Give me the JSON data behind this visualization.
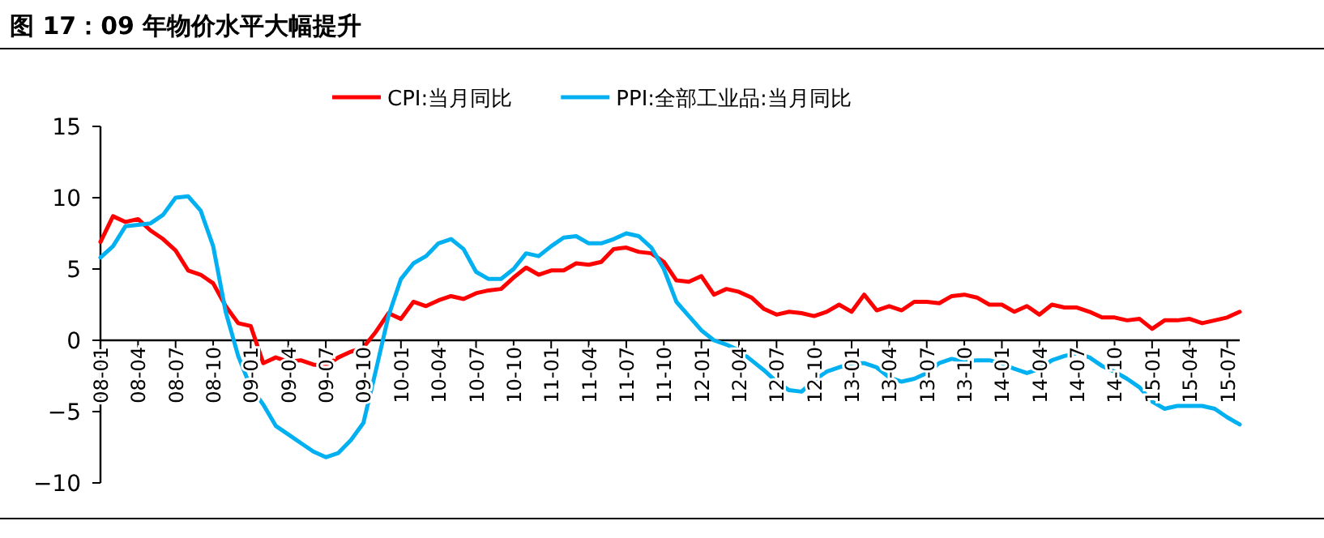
{
  "chart_data": {
    "type": "line",
    "title": "图 17：09 年物价水平大幅提升",
    "categories": [
      "08-01",
      null,
      null,
      "08-04",
      null,
      null,
      "08-07",
      null,
      null,
      "08-10",
      null,
      null,
      "09-01",
      null,
      null,
      "09-04",
      null,
      null,
      "09-07",
      null,
      null,
      "09-10",
      null,
      null,
      "10-01",
      null,
      null,
      "10-04",
      null,
      null,
      "10-07",
      null,
      null,
      "10-10",
      null,
      null,
      "11-01",
      null,
      null,
      "11-04",
      null,
      null,
      "11-07",
      null,
      null,
      "11-10",
      null,
      null,
      "12-01",
      null,
      null,
      "12-04",
      null,
      null,
      "12-07",
      null,
      null,
      "12-10",
      null,
      null,
      "13-01",
      null,
      null,
      "13-04",
      null,
      null,
      "13-07",
      null,
      null,
      "13-10",
      null,
      null,
      "14-01",
      null,
      null,
      "14-04",
      null,
      null,
      "14-07",
      null,
      null,
      "14-10",
      null,
      null,
      "15-01",
      null,
      null,
      "15-04",
      null,
      null,
      "15-07",
      null
    ],
    "series": [
      {
        "name": "CPI:当月同比",
        "color": "#ff0000",
        "values": [
          6.9,
          8.7,
          8.3,
          8.5,
          7.7,
          7.1,
          6.3,
          4.9,
          4.6,
          4.0,
          2.4,
          1.2,
          1.0,
          -1.6,
          -1.2,
          -1.5,
          -1.4,
          -1.7,
          -1.8,
          -1.2,
          -0.8,
          -0.5,
          0.6,
          1.9,
          1.5,
          2.7,
          2.4,
          2.8,
          3.1,
          2.9,
          3.3,
          3.5,
          3.6,
          4.4,
          5.1,
          4.6,
          4.9,
          4.9,
          5.4,
          5.3,
          5.5,
          6.4,
          6.5,
          6.2,
          6.1,
          5.5,
          4.2,
          4.1,
          4.5,
          3.2,
          3.6,
          3.4,
          3.0,
          2.2,
          1.8,
          2.0,
          1.9,
          1.7,
          2.0,
          2.5,
          2.0,
          3.2,
          2.1,
          2.4,
          2.1,
          2.7,
          2.7,
          2.6,
          3.1,
          3.2,
          3.0,
          2.5,
          2.5,
          2.0,
          2.4,
          1.8,
          2.5,
          2.3,
          2.3,
          2.0,
          1.6,
          1.6,
          1.4,
          1.5,
          0.8,
          1.4,
          1.4,
          1.5,
          1.2,
          1.4,
          1.6,
          2.0
        ]
      },
      {
        "name": "PPI:全部工业品:当月同比",
        "color": "#00b0f0",
        "values": [
          5.8,
          6.6,
          8.0,
          8.1,
          8.2,
          8.8,
          10.0,
          10.1,
          9.1,
          6.6,
          2.0,
          -1.1,
          -3.3,
          -4.5,
          -6.0,
          -6.6,
          -7.2,
          -7.8,
          -8.2,
          -7.9,
          -7.0,
          -5.8,
          -2.1,
          1.7,
          4.3,
          5.4,
          5.9,
          6.8,
          7.1,
          6.4,
          4.8,
          4.3,
          4.3,
          5.0,
          6.1,
          5.9,
          6.6,
          7.2,
          7.3,
          6.8,
          6.8,
          7.1,
          7.5,
          7.3,
          6.5,
          5.0,
          2.7,
          1.7,
          0.7,
          0.0,
          -0.3,
          -0.7,
          -1.4,
          -2.1,
          -2.9,
          -3.5,
          -3.6,
          -2.8,
          -2.2,
          -1.9,
          -1.6,
          -1.6,
          -1.9,
          -2.6,
          -2.9,
          -2.7,
          -2.3,
          -1.6,
          -1.3,
          -1.5,
          -1.4,
          -1.4,
          -1.6,
          -2.0,
          -2.3,
          -2.0,
          -1.4,
          -1.1,
          -0.9,
          -1.2,
          -1.8,
          -2.2,
          -2.7,
          -3.3,
          -4.3,
          -4.8,
          -4.6,
          -4.6,
          -4.6,
          -4.8,
          -5.4,
          -5.9
        ]
      }
    ],
    "ylim": [
      -10,
      15
    ],
    "yticks": [
      -10,
      -5,
      0,
      5,
      10,
      15
    ],
    "legend": "top",
    "grid": false,
    "line_style": "solid",
    "marker": "none"
  }
}
